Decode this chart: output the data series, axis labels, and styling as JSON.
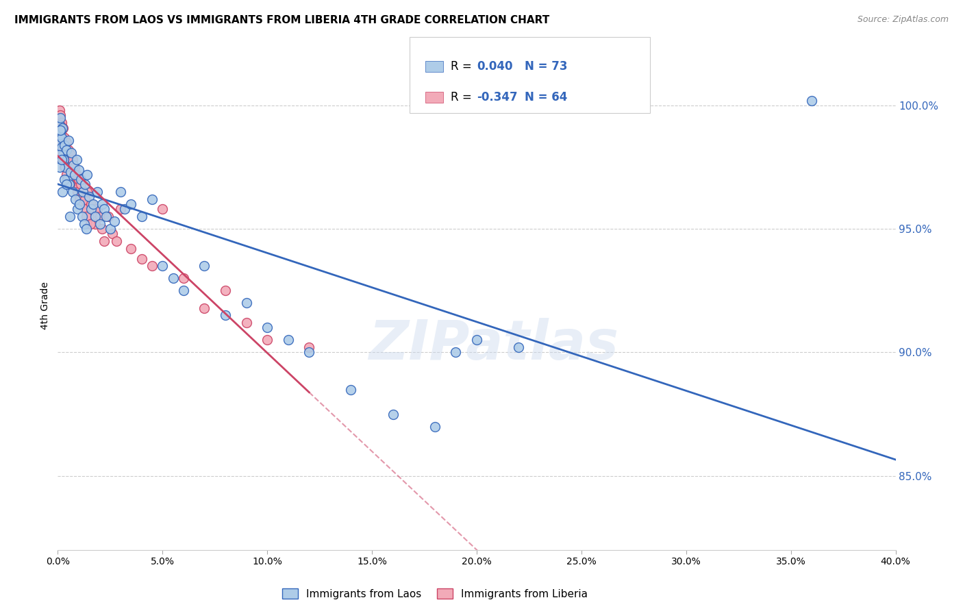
{
  "title": "IMMIGRANTS FROM LAOS VS IMMIGRANTS FROM LIBERIA 4TH GRADE CORRELATION CHART",
  "source": "Source: ZipAtlas.com",
  "ylabel": "4th Grade",
  "yticks": [
    100.0,
    95.0,
    90.0,
    85.0
  ],
  "ytick_labels": [
    "100.0%",
    "95.0%",
    "90.0%",
    "85.0%"
  ],
  "xmin": 0.0,
  "xmax": 40.0,
  "ymin": 82.0,
  "ymax": 101.8,
  "laos_R": 0.04,
  "laos_N": 73,
  "liberia_R": -0.347,
  "liberia_N": 64,
  "laos_color": "#aecce8",
  "liberia_color": "#f2aab8",
  "laos_line_color": "#3366bb",
  "liberia_line_color": "#cc4466",
  "legend_label_laos": "Immigrants from Laos",
  "legend_label_liberia": "Immigrants from Liberia",
  "watermark": "ZIPatlas",
  "laos_x": [
    0.05,
    0.08,
    0.1,
    0.12,
    0.15,
    0.18,
    0.2,
    0.22,
    0.25,
    0.28,
    0.3,
    0.35,
    0.4,
    0.45,
    0.5,
    0.55,
    0.6,
    0.65,
    0.7,
    0.75,
    0.8,
    0.85,
    0.9,
    0.95,
    1.0,
    1.05,
    1.1,
    1.15,
    1.2,
    1.25,
    1.3,
    1.35,
    1.4,
    1.5,
    1.6,
    1.7,
    1.8,
    1.9,
    2.0,
    2.1,
    2.2,
    2.3,
    2.5,
    2.7,
    3.0,
    3.2,
    3.5,
    4.0,
    4.5,
    5.0,
    5.5,
    6.0,
    7.0,
    8.0,
    9.0,
    10.0,
    11.0,
    12.0,
    14.0,
    16.0,
    18.0,
    20.0,
    22.0,
    0.06,
    0.09,
    0.13,
    0.17,
    0.23,
    0.32,
    0.42,
    0.58,
    36.0,
    19.0
  ],
  "laos_y": [
    98.5,
    99.2,
    98.8,
    99.5,
    99.0,
    98.3,
    98.7,
    99.1,
    98.0,
    97.8,
    98.4,
    97.5,
    98.2,
    97.0,
    98.6,
    96.8,
    97.3,
    98.1,
    96.5,
    97.6,
    97.2,
    96.2,
    97.8,
    95.8,
    97.4,
    96.0,
    97.0,
    95.5,
    96.5,
    95.2,
    96.8,
    95.0,
    97.2,
    96.3,
    95.8,
    96.0,
    95.5,
    96.5,
    95.2,
    96.0,
    95.8,
    95.5,
    95.0,
    95.3,
    96.5,
    95.8,
    96.0,
    95.5,
    96.2,
    93.5,
    93.0,
    92.5,
    93.5,
    91.5,
    92.0,
    91.0,
    90.5,
    90.0,
    88.5,
    87.5,
    87.0,
    90.5,
    90.2,
    98.0,
    97.5,
    99.0,
    97.8,
    96.5,
    97.0,
    96.8,
    95.5,
    100.2,
    90.0
  ],
  "liberia_x": [
    0.05,
    0.08,
    0.1,
    0.12,
    0.15,
    0.18,
    0.2,
    0.22,
    0.25,
    0.28,
    0.3,
    0.35,
    0.4,
    0.45,
    0.5,
    0.55,
    0.6,
    0.65,
    0.7,
    0.75,
    0.8,
    0.85,
    0.9,
    0.95,
    1.0,
    1.05,
    1.1,
    1.15,
    1.2,
    1.25,
    1.3,
    1.4,
    1.5,
    1.6,
    1.7,
    1.8,
    1.9,
    2.0,
    2.1,
    2.2,
    2.4,
    2.6,
    2.8,
    3.0,
    3.5,
    4.0,
    4.5,
    5.0,
    6.0,
    7.0,
    8.0,
    9.0,
    10.0,
    12.0,
    0.06,
    0.09,
    0.13,
    0.17,
    0.23,
    0.32,
    0.42,
    0.58,
    1.35,
    1.55
  ],
  "liberia_y": [
    99.5,
    99.8,
    99.2,
    99.6,
    99.0,
    98.8,
    99.3,
    98.5,
    99.1,
    98.3,
    98.7,
    98.0,
    98.5,
    97.8,
    98.2,
    97.5,
    98.0,
    97.3,
    97.8,
    97.0,
    97.5,
    96.8,
    97.2,
    96.5,
    97.0,
    96.2,
    96.8,
    96.0,
    96.5,
    95.8,
    96.2,
    96.5,
    95.5,
    96.0,
    95.8,
    95.2,
    95.8,
    95.5,
    95.0,
    94.5,
    95.5,
    94.8,
    94.5,
    95.8,
    94.2,
    93.8,
    93.5,
    95.8,
    93.0,
    91.8,
    92.5,
    91.2,
    90.5,
    90.2,
    99.0,
    98.5,
    99.2,
    98.0,
    97.8,
    97.5,
    97.2,
    96.8,
    95.5,
    95.2
  ]
}
